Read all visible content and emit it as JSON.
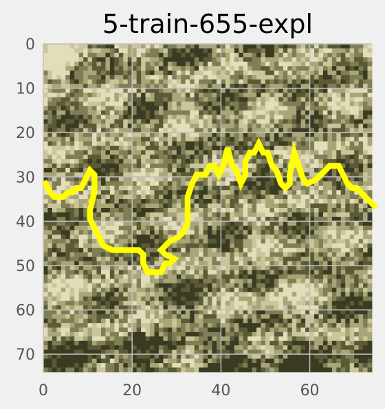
{
  "title": "5-train-655-expl",
  "image": {
    "description": "grayscale-like olive/khaki pixelated image tile",
    "palette": [
      "#3a3b22",
      "#5a5a36",
      "#7f7e55",
      "#a9a577",
      "#cbc69a",
      "#e2ddbb"
    ],
    "overlay_color": "#ffff00",
    "grid_color": "#bfbfbf"
  },
  "axes": {
    "xlim": [
      0,
      74
    ],
    "ylim": [
      74,
      0
    ],
    "x_ticks": [
      0,
      20,
      40,
      60
    ],
    "y_ticks": [
      0,
      10,
      20,
      30,
      40,
      50,
      60,
      70
    ],
    "grid": true
  },
  "overlay_path": [
    [
      0,
      31
    ],
    [
      1,
      33
    ],
    [
      2,
      34
    ],
    [
      3,
      34
    ],
    [
      4,
      34
    ],
    [
      5,
      33
    ],
    [
      6,
      33
    ],
    [
      7,
      32
    ],
    [
      8,
      32
    ],
    [
      9,
      30
    ],
    [
      10,
      28
    ],
    [
      11,
      29
    ],
    [
      11,
      33
    ],
    [
      10,
      37
    ],
    [
      10,
      39
    ],
    [
      11,
      41
    ],
    [
      12,
      43
    ],
    [
      13,
      45
    ],
    [
      15,
      46
    ],
    [
      17,
      46
    ],
    [
      19,
      46
    ],
    [
      21,
      46
    ],
    [
      22,
      47
    ],
    [
      22,
      49
    ],
    [
      23,
      51
    ],
    [
      25,
      51
    ],
    [
      26,
      51
    ],
    [
      27,
      49
    ],
    [
      28,
      49
    ],
    [
      29,
      48
    ],
    [
      27,
      47
    ],
    [
      26,
      46
    ],
    [
      27,
      45
    ],
    [
      28,
      44
    ],
    [
      30,
      43
    ],
    [
      31,
      42
    ],
    [
      32,
      40
    ],
    [
      32,
      37
    ],
    [
      32,
      34
    ],
    [
      33,
      31
    ],
    [
      34,
      29
    ],
    [
      36,
      29
    ],
    [
      37,
      27
    ],
    [
      38,
      27
    ],
    [
      39,
      29
    ],
    [
      40,
      27
    ],
    [
      41,
      23
    ],
    [
      42,
      27
    ],
    [
      43,
      28
    ],
    [
      44,
      31
    ],
    [
      45,
      29
    ],
    [
      45,
      26
    ],
    [
      46,
      24
    ],
    [
      47,
      24
    ],
    [
      48,
      22
    ],
    [
      49,
      24
    ],
    [
      50,
      24
    ],
    [
      51,
      27
    ],
    [
      52,
      28
    ],
    [
      53,
      31
    ],
    [
      54,
      32
    ],
    [
      55,
      31
    ],
    [
      55,
      29
    ],
    [
      56,
      24
    ],
    [
      57,
      27
    ],
    [
      58,
      30
    ],
    [
      59,
      31
    ],
    [
      61,
      30
    ],
    [
      62,
      29
    ],
    [
      63,
      28
    ],
    [
      64,
      27
    ],
    [
      66,
      27
    ],
    [
      67,
      29
    ],
    [
      68,
      31
    ],
    [
      69,
      32
    ],
    [
      70,
      32
    ],
    [
      71,
      33
    ],
    [
      72,
      34
    ],
    [
      73,
      35
    ],
    [
      74,
      36
    ]
  ]
}
